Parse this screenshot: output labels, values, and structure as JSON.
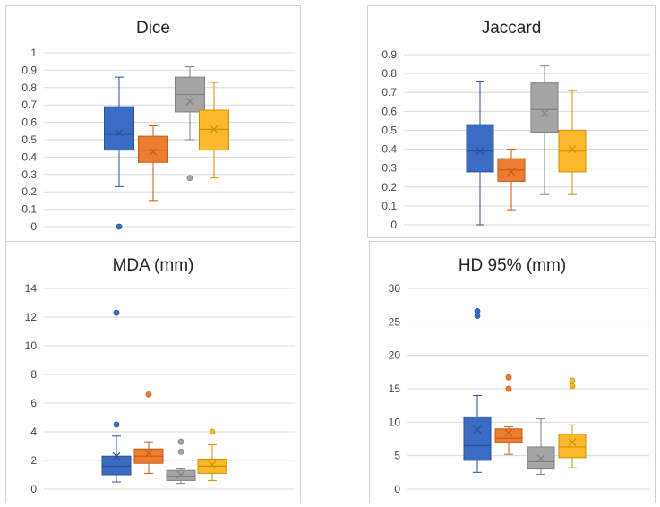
{
  "colors": [
    "#3a6cc4",
    "#ed7d31",
    "#a5a5a5",
    "#fdb92b"
  ],
  "colors_dark": [
    "#2a4f94",
    "#c55a11",
    "#7f7f7f",
    "#c89100"
  ],
  "chart_data": [
    {
      "id": "dice",
      "type": "box",
      "title": "Dice",
      "ylim": [
        0,
        1
      ],
      "ticks": [
        "0",
        "0.1",
        "0.2",
        "0.3",
        "0.4",
        "0.5",
        "0.6",
        "0.7",
        "0.8",
        "0.9",
        "1"
      ],
      "tick_values": [
        0,
        0.1,
        0.2,
        0.3,
        0.4,
        0.5,
        0.6,
        0.7,
        0.8,
        0.9,
        1
      ],
      "series": [
        {
          "min": 0.23,
          "q1": 0.44,
          "median": 0.53,
          "q3": 0.69,
          "max": 0.86,
          "mean": 0.54,
          "outliers": [
            0.0
          ]
        },
        {
          "min": 0.15,
          "q1": 0.37,
          "median": 0.44,
          "q3": 0.52,
          "max": 0.58,
          "mean": 0.43,
          "outliers": []
        },
        {
          "min": 0.5,
          "q1": 0.66,
          "median": 0.76,
          "q3": 0.86,
          "max": 0.92,
          "mean": 0.72,
          "outliers": [
            0.28
          ]
        },
        {
          "min": 0.28,
          "q1": 0.44,
          "median": 0.56,
          "q3": 0.67,
          "max": 0.83,
          "mean": 0.56,
          "outliers": []
        }
      ]
    },
    {
      "id": "jaccard",
      "type": "box",
      "title": "Jaccard",
      "ylim": [
        0,
        0.9
      ],
      "ticks": [
        "0",
        "0.1",
        "0.2",
        "0.3",
        "0.4",
        "0.5",
        "0.6",
        "0.7",
        "0.8",
        "0.9"
      ],
      "tick_values": [
        0,
        0.1,
        0.2,
        0.3,
        0.4,
        0.5,
        0.6,
        0.7,
        0.8,
        0.9
      ],
      "series": [
        {
          "min": 0.0,
          "q1": 0.28,
          "median": 0.39,
          "q3": 0.53,
          "max": 0.76,
          "mean": 0.39,
          "outliers": []
        },
        {
          "min": 0.08,
          "q1": 0.23,
          "median": 0.29,
          "q3": 0.35,
          "max": 0.4,
          "mean": 0.28,
          "outliers": []
        },
        {
          "min": 0.16,
          "q1": 0.49,
          "median": 0.61,
          "q3": 0.75,
          "max": 0.84,
          "mean": 0.59,
          "outliers": []
        },
        {
          "min": 0.16,
          "q1": 0.28,
          "median": 0.39,
          "q3": 0.5,
          "max": 0.71,
          "mean": 0.4,
          "outliers": []
        }
      ]
    },
    {
      "id": "mda",
      "type": "box",
      "title": "MDA (mm)",
      "ylim": [
        0,
        14
      ],
      "ticks": [
        "0",
        "2",
        "4",
        "6",
        "8",
        "10",
        "12",
        "14"
      ],
      "tick_values": [
        0,
        2,
        4,
        6,
        8,
        10,
        12,
        14
      ],
      "series": [
        {
          "min": 0.5,
          "q1": 1.0,
          "median": 1.6,
          "q3": 2.3,
          "max": 3.7,
          "mean": 2.3,
          "outliers": [
            4.5,
            12.3
          ]
        },
        {
          "min": 1.1,
          "q1": 1.8,
          "median": 2.3,
          "q3": 2.8,
          "max": 3.3,
          "mean": 2.5,
          "outliers": [
            6.6
          ]
        },
        {
          "min": 0.4,
          "q1": 0.6,
          "median": 0.9,
          "q3": 1.3,
          "max": 1.4,
          "mean": 1.0,
          "outliers": [
            2.6,
            3.3
          ]
        },
        {
          "min": 0.6,
          "q1": 1.1,
          "median": 1.6,
          "q3": 2.1,
          "max": 3.1,
          "mean": 1.7,
          "outliers": [
            4.0
          ]
        }
      ]
    },
    {
      "id": "hd",
      "type": "box",
      "title": "HD 95% (mm)",
      "ylim": [
        0,
        30
      ],
      "ticks": [
        "0",
        "5",
        "10",
        "15",
        "20",
        "25",
        "30"
      ],
      "tick_values": [
        0,
        5,
        10,
        15,
        20,
        25,
        30
      ],
      "series": [
        {
          "min": 2.5,
          "q1": 4.3,
          "median": 6.5,
          "q3": 10.8,
          "max": 14.0,
          "mean": 8.9,
          "outliers": [
            25.9,
            26.6
          ]
        },
        {
          "min": 5.2,
          "q1": 7.0,
          "median": 7.6,
          "q3": 9.0,
          "max": 9.3,
          "mean": 8.4,
          "outliers": [
            15.0,
            16.7
          ]
        },
        {
          "min": 2.2,
          "q1": 3.0,
          "median": 4.1,
          "q3": 6.3,
          "max": 10.5,
          "mean": 4.6,
          "outliers": []
        },
        {
          "min": 3.2,
          "q1": 4.7,
          "median": 6.3,
          "q3": 8.2,
          "max": 9.6,
          "mean": 7.0,
          "outliers": [
            15.4,
            16.2
          ]
        }
      ]
    }
  ]
}
